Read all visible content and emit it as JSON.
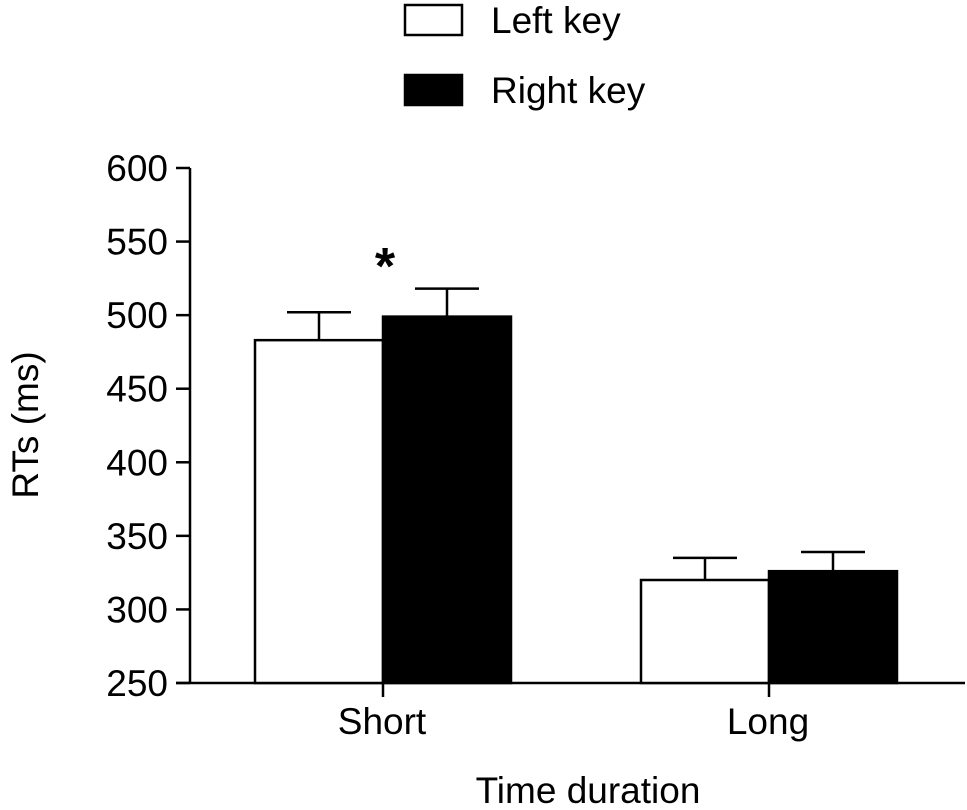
{
  "chart_data": {
    "type": "bar",
    "title": "",
    "xlabel": "Time duration",
    "ylabel": "RTs (ms)",
    "ylim": [
      250,
      600
    ],
    "yticks": [
      250,
      300,
      350,
      400,
      450,
      500,
      550,
      600
    ],
    "categories": [
      "Short",
      "Long"
    ],
    "series": [
      {
        "name": "Left key",
        "values": [
          483,
          320
        ],
        "errors": [
          19,
          15
        ],
        "color": "#ffffff"
      },
      {
        "name": "Right key",
        "values": [
          499,
          326
        ],
        "errors": [
          19,
          13
        ],
        "color": "#000000"
      }
    ],
    "annotations": [
      {
        "text": "*",
        "category": "Short"
      }
    ],
    "legend": "top-center",
    "grid": false
  }
}
